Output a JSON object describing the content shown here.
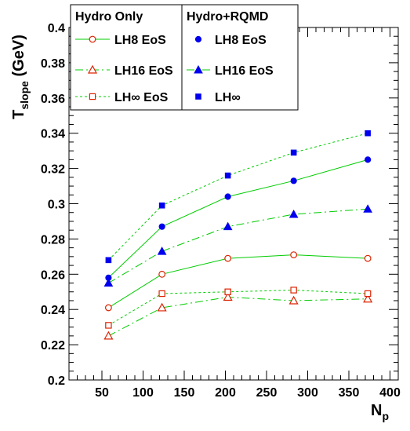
{
  "chart_data": {
    "type": "scatter",
    "ylabel_main": "T",
    "ylabel_sub": "slope",
    "ylabel_unit": " (GeV)",
    "xlabel_main": "N",
    "xlabel_sub": "p",
    "xlim": [
      10,
      410
    ],
    "ylim": [
      0.2,
      0.4
    ],
    "xticks": [
      50,
      100,
      150,
      200,
      250,
      300,
      350,
      400
    ],
    "yticks": [
      0.2,
      0.22,
      0.24,
      0.26,
      0.28,
      0.3,
      0.32,
      0.34,
      0.36,
      0.38,
      0.4
    ],
    "ytick_labels": [
      "0.2",
      "0.22",
      "0.24",
      "0.26",
      "0.28",
      "0.3",
      "0.32",
      "0.34",
      "0.36",
      "0.38",
      "0.4"
    ],
    "x": [
      58,
      123,
      203,
      283,
      373
    ],
    "legend": {
      "placement": "top-left",
      "group_hydro": "Hydro Only",
      "group_rqmd": "Hydro+RQMD"
    },
    "line_color": "#00cc00",
    "hydro_color": "#dd2200",
    "rqmd_color": "#0000ee",
    "series": [
      {
        "name": "LH8 EoS",
        "group": "hydro",
        "marker": "open-circle",
        "dash": "solid",
        "values": [
          0.241,
          0.26,
          0.269,
          0.271,
          0.269
        ]
      },
      {
        "name": "LH16 EoS",
        "group": "hydro",
        "marker": "open-triangle",
        "dash": "dashdot",
        "values": [
          0.225,
          0.241,
          0.247,
          0.245,
          0.246
        ]
      },
      {
        "name": "LH∞ EoS",
        "group": "hydro",
        "marker": "open-square",
        "dash": "dotted",
        "values": [
          0.231,
          0.249,
          0.25,
          0.251,
          0.249
        ]
      },
      {
        "name": "LH8 EoS",
        "group": "rqmd",
        "marker": "filled-circle",
        "dash": "solid",
        "values": [
          0.258,
          0.287,
          0.304,
          0.313,
          0.325
        ]
      },
      {
        "name": "LH16 EoS",
        "group": "rqmd",
        "marker": "filled-triangle",
        "dash": "dashdot",
        "values": [
          0.255,
          0.273,
          0.287,
          0.294,
          0.297
        ]
      },
      {
        "name": "LH∞",
        "group": "rqmd",
        "marker": "filled-square",
        "dash": "dotted",
        "values": [
          0.268,
          0.299,
          0.316,
          0.329,
          0.34
        ]
      }
    ]
  }
}
